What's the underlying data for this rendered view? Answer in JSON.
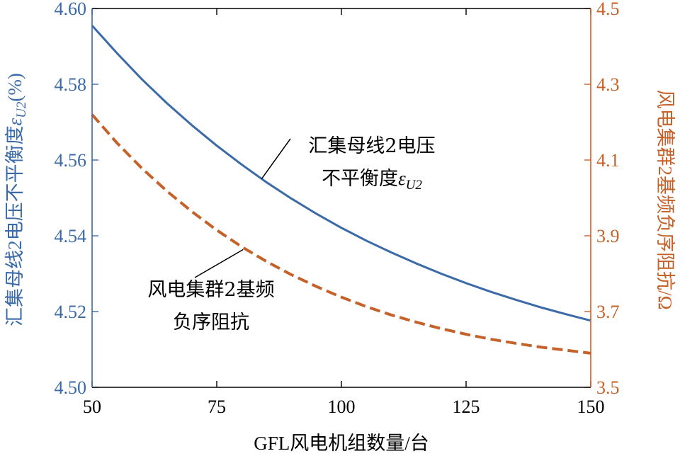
{
  "chart_data": {
    "type": "line",
    "xlabel": "GFL风电机组数量/台",
    "ylabel_left_main": "汇集母线2电压不平衡度",
    "ylabel_left_symbol": "ε",
    "ylabel_left_sub": "U2",
    "ylabel_left_unit": "(%)",
    "ylabel_right": "风电集群2基频负序阻抗/Ω",
    "xlim": [
      50,
      150
    ],
    "ylim_left": [
      4.5,
      4.6
    ],
    "ylim_right": [
      3.5,
      4.5
    ],
    "x_ticks": [
      "50",
      "75",
      "100",
      "125",
      "150"
    ],
    "y_left_ticks": [
      "4.50",
      "4.52",
      "4.54",
      "4.56",
      "4.58",
      "4.60"
    ],
    "y_right_ticks": [
      "3.5",
      "3.7",
      "3.9",
      "4.1",
      "4.3",
      "4.5"
    ],
    "grid": false,
    "colors": {
      "left_axis": "#3b6aa8",
      "right_axis": "#c5622a",
      "frame": "#000000"
    },
    "series": [
      {
        "axis": "left",
        "style": "solid",
        "color": "#3b6aa8",
        "x": [
          50,
          55,
          60,
          65,
          70,
          75,
          80,
          85,
          90,
          95,
          100,
          105,
          110,
          115,
          120,
          125,
          130,
          135,
          140,
          145,
          150
        ],
        "values": [
          4.5955,
          4.5882,
          4.5813,
          4.575,
          4.5692,
          4.5638,
          4.5588,
          4.5541,
          4.5498,
          4.5458,
          4.5421,
          4.5387,
          4.5356,
          4.5327,
          4.53,
          4.5275,
          4.5252,
          4.5231,
          4.5211,
          4.5193,
          4.5176
        ]
      },
      {
        "axis": "right",
        "style": "dashed",
        "color": "#c5622a",
        "x": [
          50,
          55,
          60,
          65,
          70,
          75,
          80,
          85,
          90,
          95,
          100,
          105,
          110,
          115,
          120,
          125,
          130,
          135,
          140,
          145,
          150
        ],
        "values": [
          4.22,
          4.145,
          4.078,
          4.018,
          3.964,
          3.915,
          3.871,
          3.832,
          3.797,
          3.766,
          3.738,
          3.713,
          3.691,
          3.672,
          3.655,
          3.64,
          3.627,
          3.616,
          3.606,
          3.598,
          3.59
        ]
      }
    ],
    "annotations": [
      {
        "lines": [
          "汇集母线2电压",
          "不平衡度"
        ],
        "symbol": "ε",
        "sub": "U2",
        "target_series": 0
      },
      {
        "lines": [
          "风电集群2基频",
          "负序阻抗"
        ],
        "target_series": 1
      }
    ]
  }
}
